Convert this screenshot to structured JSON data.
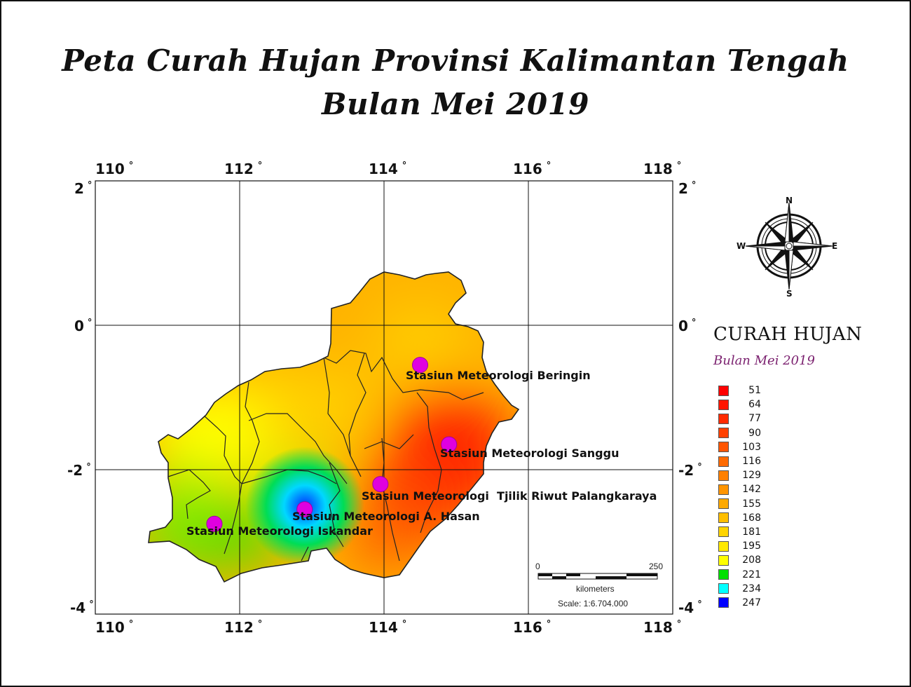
{
  "title_line1": "Peta Curah Hujan Provinsi Kalimantan Tengah",
  "title_line2": "Bulan Mei 2019",
  "axes": {
    "longitude_ticks": [
      "110",
      "112",
      "114",
      "116",
      "118"
    ],
    "latitude_ticks": [
      "2",
      "0",
      "-2",
      "-4"
    ],
    "degree_symbol": "°"
  },
  "stations": [
    {
      "name": "Stasiun Meteorologi Beringin",
      "lon": 114.5,
      "lat": -0.55
    },
    {
      "name": "Stasiun Meteorologi Sanggu",
      "lon": 114.9,
      "lat": -1.65
    },
    {
      "name": "Stasiun Meteorologi  Tjilik Riwut Palangkaraya",
      "lon": 113.95,
      "lat": -2.2
    },
    {
      "name": "Stasiun Meteorologi A. Hasan",
      "lon": 112.9,
      "lat": -2.55
    },
    {
      "name": "Stasiun Meteorologi Iskandar",
      "lon": 111.65,
      "lat": -2.75
    }
  ],
  "station_color": "#e000e0",
  "scale_bar": {
    "start": "0",
    "end": "250",
    "unit": "kilometers",
    "scale_text": "Scale: 1:6.704.000"
  },
  "compass": {
    "n": "N",
    "s": "S",
    "e": "E",
    "w": "W"
  },
  "legend": {
    "title": "CURAH HUJAN",
    "subtitle": "Bulan Mei 2019",
    "items": [
      {
        "value": "51",
        "color": "#ff0000"
      },
      {
        "value": "64",
        "color": "#ff1500"
      },
      {
        "value": "77",
        "color": "#ff2a00"
      },
      {
        "value": "90",
        "color": "#ff4000"
      },
      {
        "value": "103",
        "color": "#ff5500"
      },
      {
        "value": "116",
        "color": "#ff6a00"
      },
      {
        "value": "129",
        "color": "#ff8000"
      },
      {
        "value": "142",
        "color": "#ff9500"
      },
      {
        "value": "155",
        "color": "#ffaa00"
      },
      {
        "value": "168",
        "color": "#ffbf00"
      },
      {
        "value": "181",
        "color": "#ffd500"
      },
      {
        "value": "195",
        "color": "#ffea00"
      },
      {
        "value": "208",
        "color": "#ffff00"
      },
      {
        "value": "221",
        "color": "#00e000"
      },
      {
        "value": "234",
        "color": "#00ffff"
      },
      {
        "value": "247",
        "color": "#0000ff"
      }
    ]
  }
}
